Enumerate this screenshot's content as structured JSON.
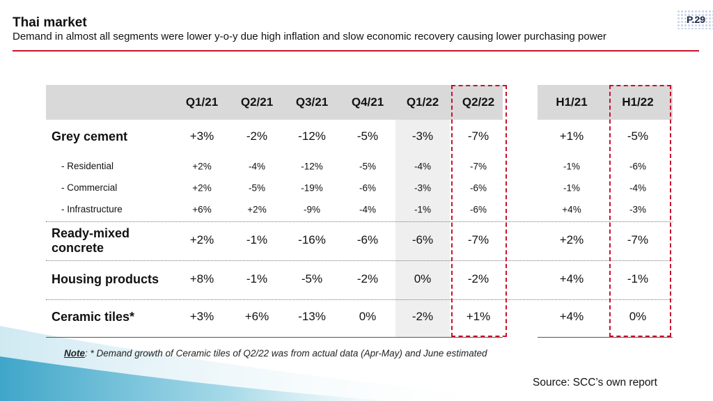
{
  "header": {
    "title": "Thai market",
    "subtitle": "Demand in almost all segments were lower y-o-y due high inflation and slow economic recovery causing lower purchasing power",
    "page_number": "P.29"
  },
  "table": {
    "quarter_columns": [
      "Q1/21",
      "Q2/21",
      "Q3/21",
      "Q4/21",
      "Q1/22",
      "Q2/22"
    ],
    "half_columns": [
      "H1/21",
      "H1/22"
    ],
    "rows": [
      {
        "label": "Grey cement",
        "values": [
          "+3%",
          "-2%",
          "-12%",
          "-5%",
          "-3%",
          "-7%"
        ],
        "halves": [
          "+1%",
          "-5%"
        ]
      },
      {
        "label": "- Residential",
        "values": [
          "+2%",
          "-4%",
          "-12%",
          "-5%",
          "-4%",
          "-7%"
        ],
        "halves": [
          "-1%",
          "-6%"
        ]
      },
      {
        "label": "- Commercial",
        "values": [
          "+2%",
          "-5%",
          "-19%",
          "-6%",
          "-3%",
          "-6%"
        ],
        "halves": [
          "-1%",
          "-4%"
        ]
      },
      {
        "label": "- Infrastructure",
        "values": [
          "+6%",
          "+2%",
          "-9%",
          "-4%",
          "-1%",
          "-6%"
        ],
        "halves": [
          "+4%",
          "-3%"
        ]
      },
      {
        "label_line1": "Ready-mixed",
        "label_line2": "concrete",
        "values": [
          "+2%",
          "-1%",
          "-16%",
          "-6%",
          "-6%",
          "-7%"
        ],
        "halves": [
          "+2%",
          "-7%"
        ]
      },
      {
        "label": "Housing products",
        "values": [
          "+8%",
          "-1%",
          "-5%",
          "-2%",
          "0%",
          "-2%"
        ],
        "halves": [
          "+4%",
          "-1%"
        ]
      },
      {
        "label": "Ceramic tiles*",
        "values": [
          "+3%",
          "+6%",
          "-13%",
          "0%",
          "-2%",
          "+1%"
        ],
        "halves": [
          "+4%",
          "0%"
        ]
      }
    ],
    "highlight_color": "#c8102e"
  },
  "note": {
    "prefix": "Note",
    "text": ": * Demand growth of Ceramic tiles of Q2/22 was from actual data (Apr-May) and June estimated"
  },
  "source": "Source: SCC’s own report"
}
